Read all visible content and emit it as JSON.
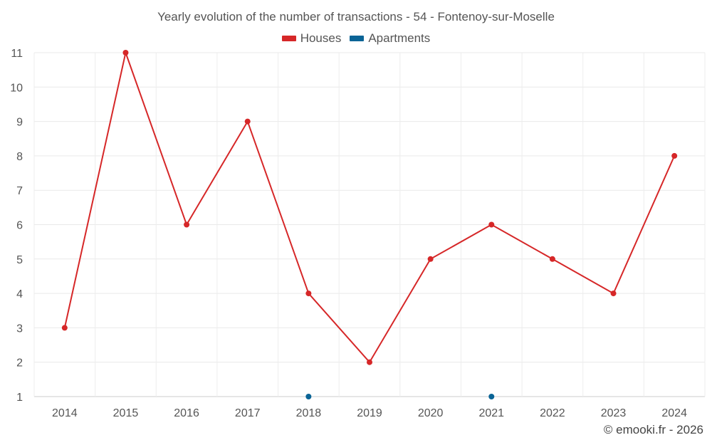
{
  "chart_data": {
    "type": "line",
    "title": "Yearly evolution of the number of transactions - 54 - Fontenoy-sur-Moselle",
    "categories": [
      "2014",
      "2015",
      "2016",
      "2017",
      "2018",
      "2019",
      "2020",
      "2021",
      "2022",
      "2023",
      "2024"
    ],
    "series": [
      {
        "name": "Houses",
        "color": "#d62728",
        "values": [
          3,
          11,
          6,
          9,
          4,
          2,
          5,
          6,
          5,
          4,
          8
        ]
      },
      {
        "name": "Apartments",
        "color": "#0a6496",
        "values": [
          null,
          null,
          null,
          null,
          1,
          null,
          null,
          1,
          null,
          null,
          null
        ]
      }
    ],
    "yticks": [
      1,
      2,
      3,
      4,
      5,
      6,
      7,
      8,
      9,
      10,
      11
    ],
    "ylim": [
      1,
      11
    ],
    "grid": true,
    "legend_position": "top-center",
    "credit": "© emooki.fr - 2026"
  }
}
